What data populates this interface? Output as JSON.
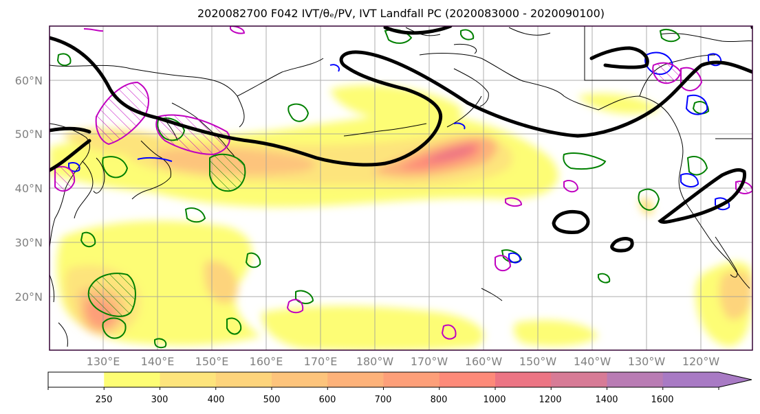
{
  "title": "2020082700 F042 IVT/θₑ/PV, IVT Landfall PC (2020083000 - 2020090100)",
  "axes": {
    "lon_ticks": [
      "130°E",
      "140°E",
      "150°E",
      "160°E",
      "170°E",
      "180°W",
      "170°W",
      "160°W",
      "150°W",
      "140°W",
      "130°W",
      "120°W"
    ],
    "lat_ticks": [
      "60°N",
      "50°N",
      "40°N",
      "30°N",
      "20°N"
    ],
    "tick_color": "#808080"
  },
  "colorbar": {
    "levels": [
      "250",
      "300",
      "400",
      "500",
      "600",
      "700",
      "800",
      "1000",
      "1200",
      "1400",
      "1600"
    ],
    "colors": [
      "#ffffff",
      "#fdfd74",
      "#fde47c",
      "#fdd47c",
      "#fdc47c",
      "#fdb27a",
      "#fd9f79",
      "#fd8a79",
      "#ec7584",
      "#d77b96",
      "#b97cb4",
      "#a87ac4"
    ]
  },
  "legend_colors": {
    "theta_contour": "#000000",
    "pv_green": "#008000",
    "pv_blue": "#0000ff",
    "pv_magenta": "#c000c0",
    "frame": "#330033"
  }
}
